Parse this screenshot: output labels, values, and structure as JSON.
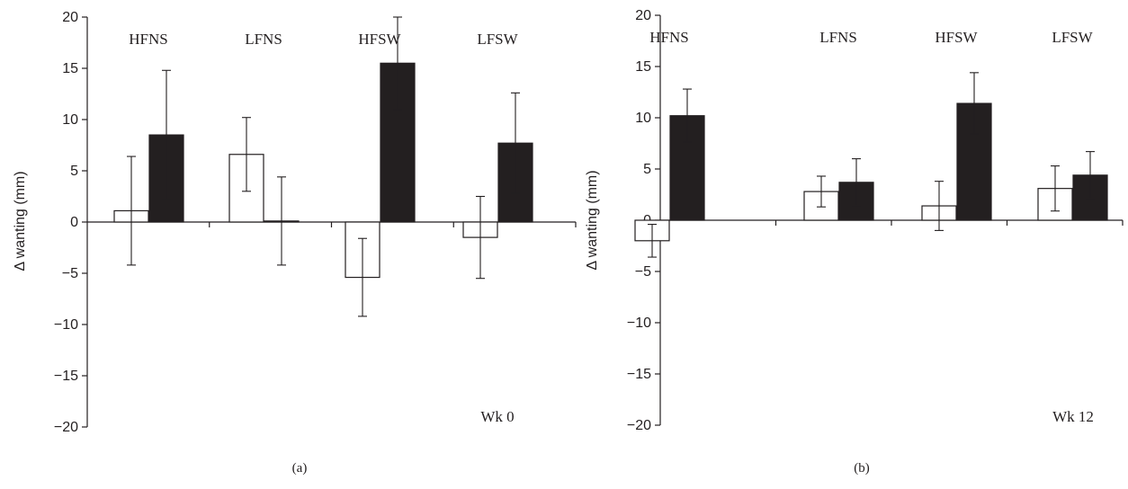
{
  "chart_data": [
    {
      "type": "bar",
      "panel_label": "(a)",
      "week_label": "Wk 0",
      "ylabel": "Δ wanting (mm)",
      "ylim": [
        -20,
        20
      ],
      "yticks": [
        -20,
        -15,
        -10,
        -5,
        0,
        5,
        10,
        15,
        20
      ],
      "categories": [
        "HFNS",
        "LFNS",
        "HFSW",
        "LFSW"
      ],
      "series": [
        {
          "fill": "#ffffff",
          "values": [
            1.1,
            6.6,
            -5.4,
            -1.5
          ],
          "errors": [
            5.3,
            3.6,
            3.8,
            4.0
          ]
        },
        {
          "fill": "#231f20",
          "values": [
            8.5,
            0.1,
            15.5,
            7.7
          ],
          "errors": [
            6.3,
            4.3,
            4.5,
            4.9
          ]
        }
      ],
      "legend": "none",
      "grid": false
    },
    {
      "type": "bar",
      "panel_label": "(b)",
      "week_label": "Wk 12",
      "ylabel": "Δ wanting (mm)",
      "ylim": [
        -20,
        20
      ],
      "yticks": [
        -20,
        -15,
        -10,
        -5,
        0,
        5,
        10,
        15,
        20
      ],
      "categories": [
        "HFNS",
        "LFNS",
        "HFSW",
        "LFSW"
      ],
      "series": [
        {
          "fill": "#ffffff",
          "values": [
            -2.0,
            2.8,
            1.4,
            3.1
          ],
          "errors": [
            1.6,
            1.5,
            2.4,
            2.2
          ]
        },
        {
          "fill": "#231f20",
          "values": [
            10.2,
            3.7,
            11.4,
            4.4
          ],
          "errors": [
            2.6,
            2.3,
            3.0,
            2.3
          ]
        }
      ],
      "legend": "none",
      "grid": false
    }
  ]
}
